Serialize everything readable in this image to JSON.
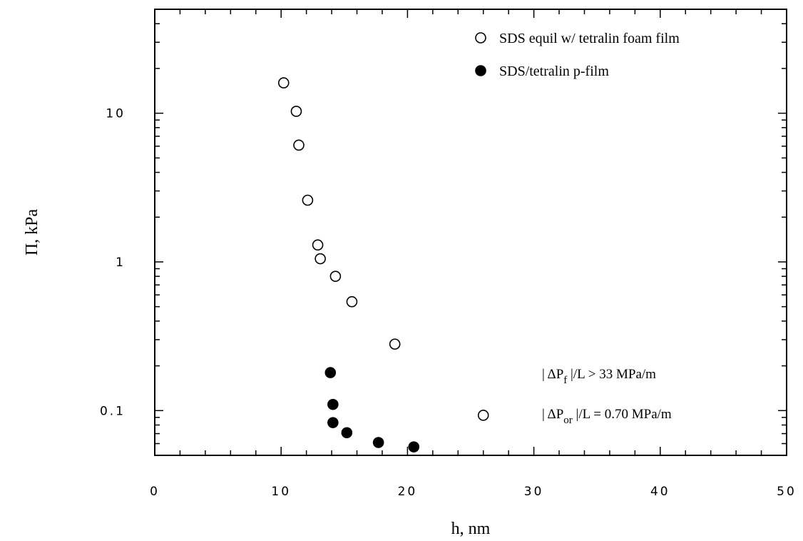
{
  "chart_data": {
    "type": "scatter",
    "title": "",
    "xlabel": "h, nm",
    "ylabel": "Π, kPa",
    "xlim": [
      0,
      50
    ],
    "ylim": [
      0.05,
      50
    ],
    "yscale": "log",
    "x_ticks": [
      0,
      10,
      20,
      30,
      40,
      50
    ],
    "x_tick_labels": [
      "0",
      "10",
      "20",
      "30",
      "40",
      "50"
    ],
    "y_ticks": [
      0.1,
      1,
      10
    ],
    "y_tick_labels": [
      "0.1",
      "1",
      "10"
    ],
    "grid": false,
    "legend_position": "top-right",
    "series": [
      {
        "name": "SDS equil w/ tetralin foam film",
        "marker": "open-circle",
        "x": [
          10.2,
          11.2,
          11.4,
          12.1,
          12.9,
          13.1,
          14.3,
          15.6,
          19.0,
          26.0
        ],
        "y": [
          16,
          10.3,
          6.1,
          2.6,
          1.3,
          1.05,
          0.8,
          0.54,
          0.28,
          0.093
        ]
      },
      {
        "name": "SDS/tetralin p-film",
        "marker": "filled-circle",
        "x": [
          13.9,
          14.1,
          14.1,
          15.2,
          17.7,
          20.5
        ],
        "y": [
          0.18,
          0.11,
          0.083,
          0.071,
          0.061,
          0.057
        ]
      }
    ],
    "annotations": [
      {
        "prefix": "| ΔP",
        "subscript": "f",
        "suffix": " |/L > 33 MPa/m"
      },
      {
        "prefix": "| ΔP",
        "subscript": "or",
        "suffix": " |/L = 0.70 MPa/m"
      }
    ]
  }
}
